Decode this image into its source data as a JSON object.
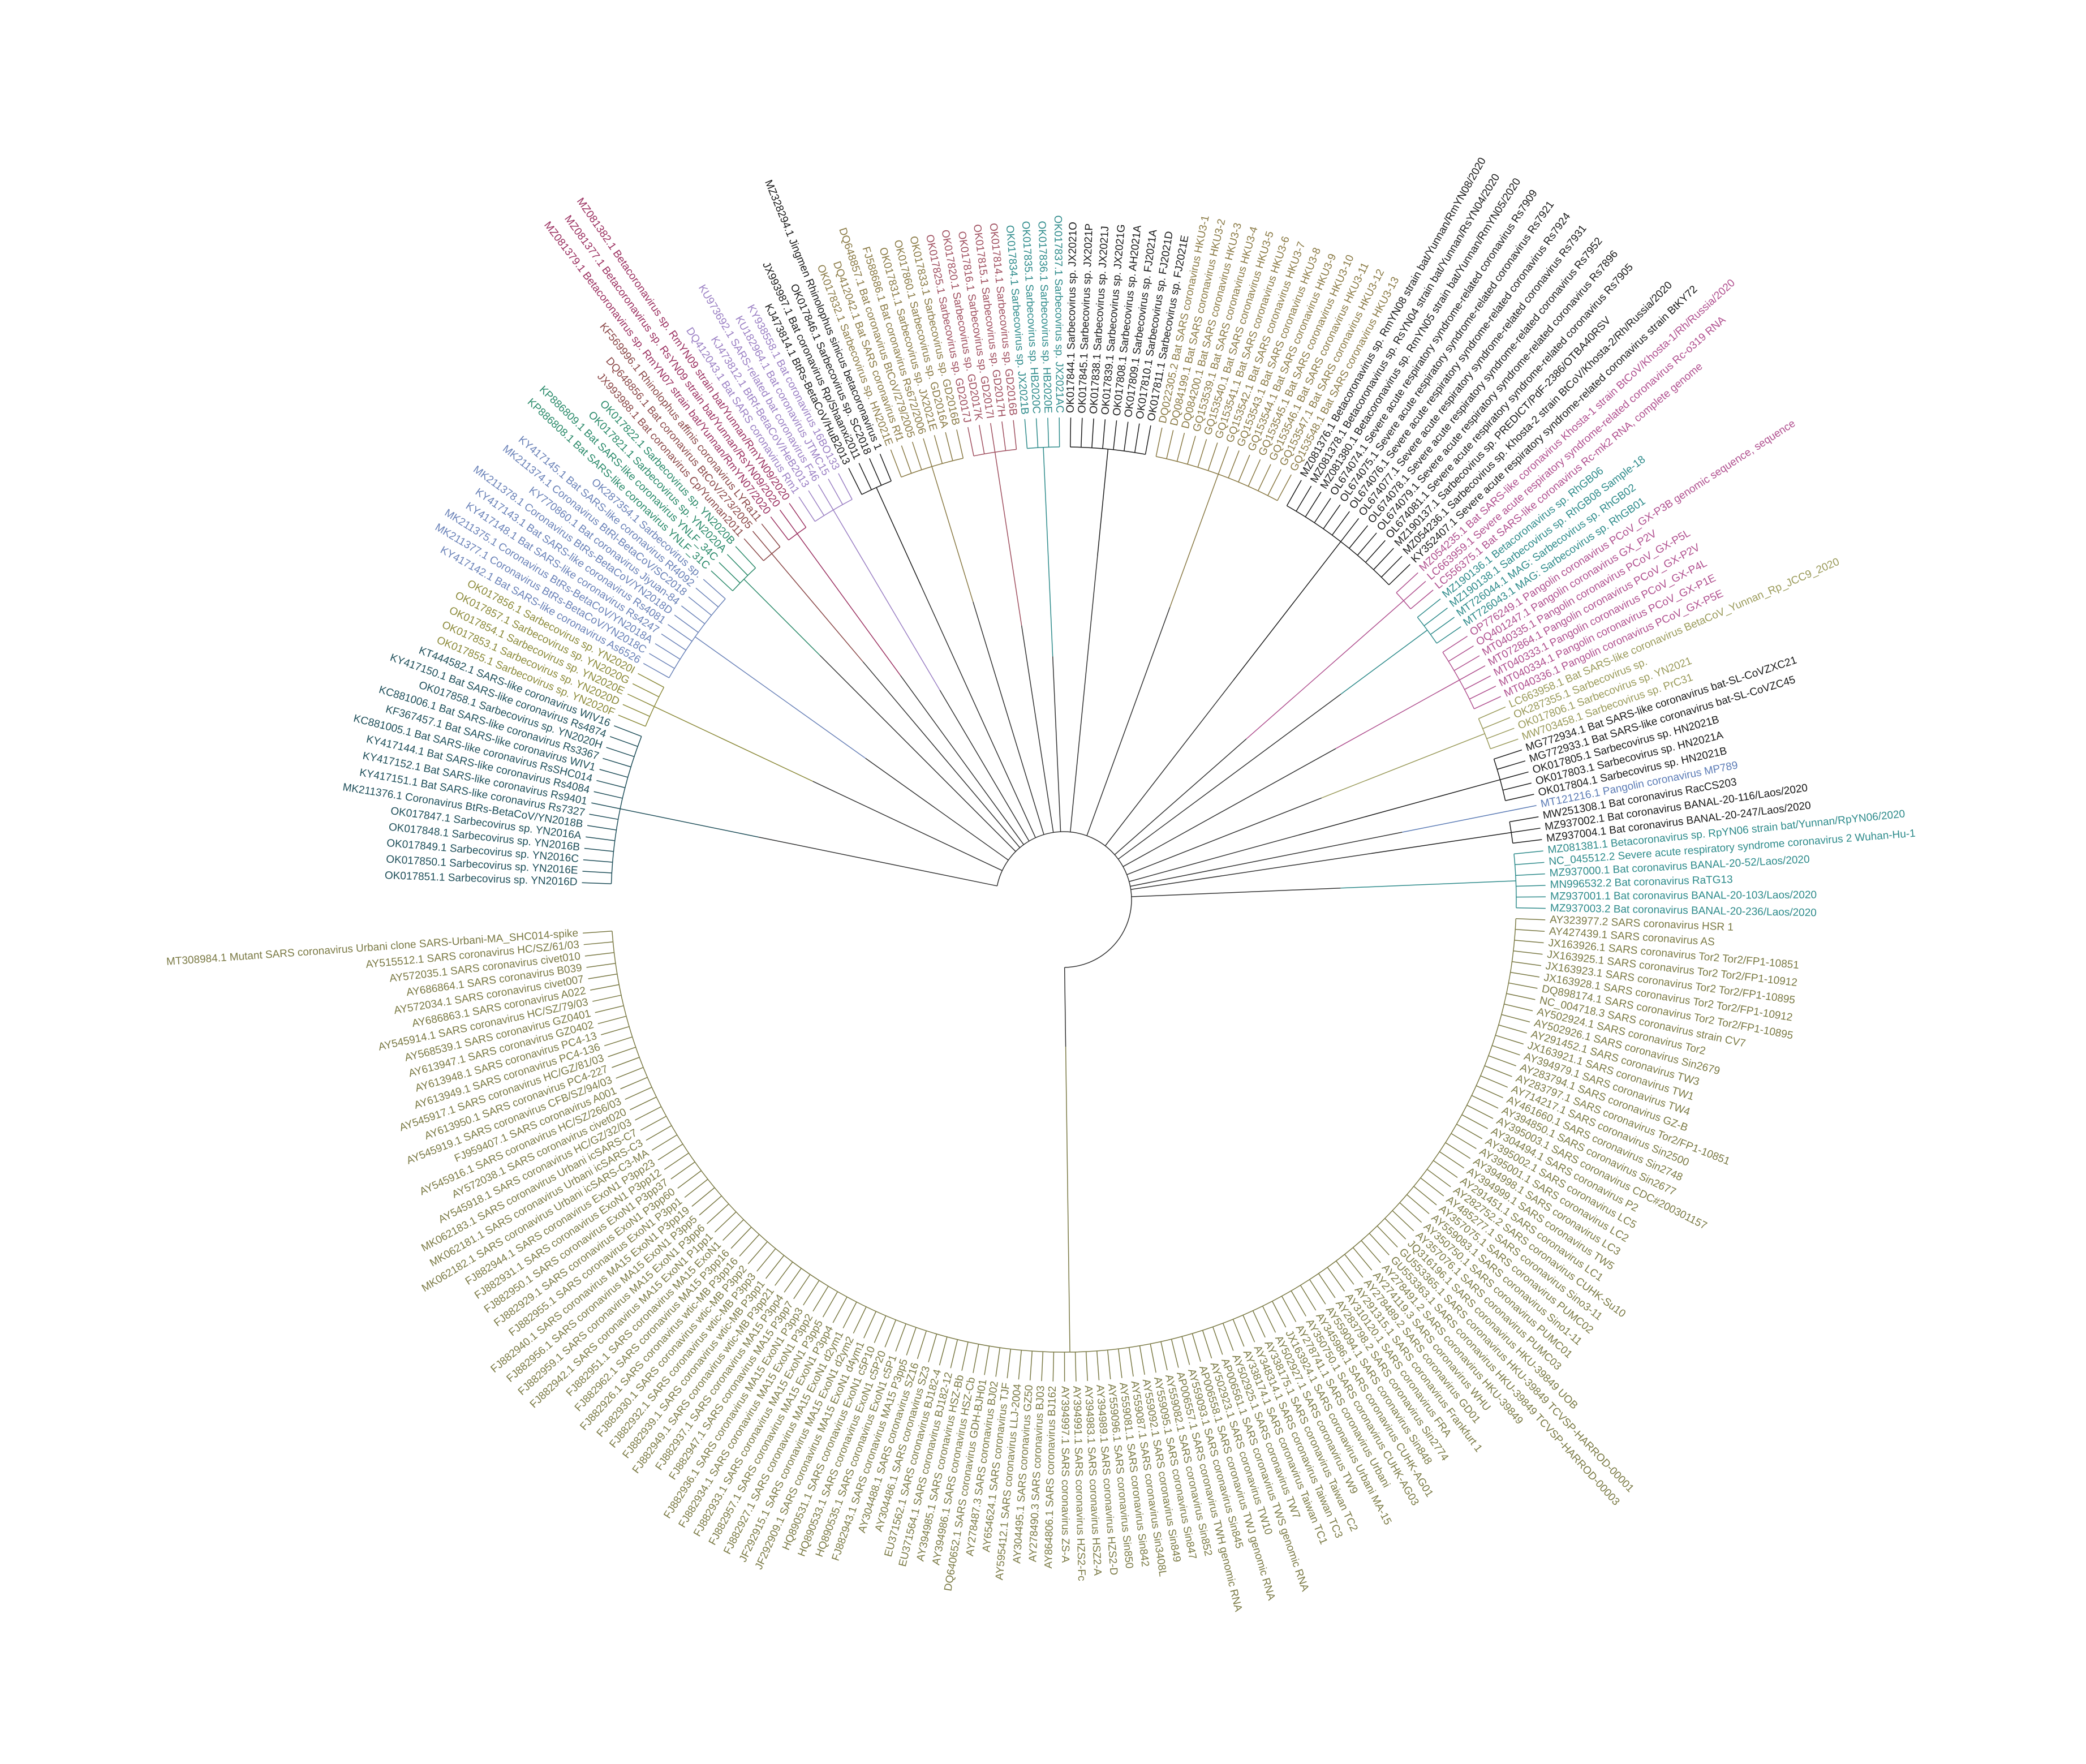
{
  "clades": [
    {
      "color": "#7b7a45",
      "leaves": [
        "MT308984.1 Mutant SARS coronavirus Urbani clone SARS-Urbani-MA_SHC014-spike",
        "AY515512.1 SARS coronavirus HC/SZ/61/03",
        "AY572035.1 SARS coronavirus civet010",
        "AY686864.1 SARS coronavirus B039",
        "AY572034.1 SARS coronavirus civet007",
        "AY686863.1 SARS coronavirus A022",
        "AY545914.1 SARS coronavirus HC/SZ/79/03",
        "AY568539.1 SARS coronavirus GZ0401",
        "AY613947.1 SARS coronavirus GZ0402",
        "AY613948.1 SARS coronavirus PC4-13",
        "AY613949.1 SARS coronavirus PC4-136",
        "AY545917.1 SARS coronavirus HC/GZ/81/03",
        "AY613950.1 SARS coronavirus PC4-227",
        "AY545919.1 SARS coronavirus CFB/SZ/94/03",
        "FJ959407.1 SARS coronavirus A001",
        "AY545916.1 SARS coronavirus HC/SZ/266/03",
        "AY572038.1 SARS coronavirus civet020",
        "AY545918.1 SARS coronavirus HC/GZ/32/03",
        "MK062183.1 SARS coronavirus Urbani icSARS-C7",
        "MK062181.1 SARS coronavirus Urbani icSARS-C3",
        "MK062182.1 SARS coronavirus Urbani icSARS-C3-MA",
        "FJ882944.1 SARS coronavirus ExoN1 P3pp23",
        "FJ882931.1 SARS coronavirus ExoN1 P3pp12",
        "FJ882950.1 SARS coronavirus ExoN1 P3pp37",
        "FJ882929.1 SARS coronavirus ExoN1 P3pp60",
        "FJ882955.1 SARS coronavirus ExoN1 P3pp1",
        "FJ882940.1 SARS coronavirus MA15 ExoN1 P3pp19",
        "FJ882956.1 SARS coronavirus MA15 ExoN1 P3pp5",
        "FJ882959.1 SARS coronavirus MA15 ExoN1 P3pp6",
        "FJ882942.1 SARS coronavirus MA15 ExoN1 P1pp1",
        "FJ882951.1 SARS coronavirus MA15 ExoN1",
        "FJ882962.1 SARS coronavirus MA15 P3pp16",
        "FJ882926.1 SARS coronavirus wtic-MB P3pp16",
        "FJ882930.1 SARS coronavirus wtic-MB P3pp2",
        "FJ882932.1 SARS coronavirus wtic-MB P3pp3",
        "FJ882939.1 SARS coronavirus wtic-MB P3pp1",
        "FJ882949.1 SARS coronavirus wtic-MB P3pp21",
        "FJ882937.1 SARS coronavirus MA15 P3pp4",
        "FJ882947.1 SARS coronavirus MA15 P3pp7",
        "FJ882936.1 SARS coronavirus MA15 ExoN1 P3pp3",
        "FJ882934.1 SARS coronavirus MA15 ExoN1 P3pp2",
        "FJ882933.1 SARS coronavirus MA15 ExoN1 P3pp5",
        "FJ882957.1 SARS coronavirus MA15 ExoN1 P3pp4",
        "FJ882927.1 SARS coronavirus MA15 ExoN1 d2ym1",
        "JF292915.1 SARS coronavirus MA15 ExoN1 d2ym2",
        "JF292909.1 SARS coronavirus MA15 ExoN1 d4ym1",
        "HQ890531.1 SARS coronavirus ExoN1 c5P10",
        "HQ890533.1 SARS coronavirus ExoN1 c5P20",
        "HQ890535.1 SARS coronavirus ExoN1 c5P1",
        "FJ882943.1 SARS coronavirus MA15 P3pp5",
        "AY304488.1 SARS coronavirus SZ16",
        "AY304486.1 SARS coronavirus SZ3",
        "EU371562.1 SARS coronavirus BJ182-4",
        "EU371564.1 SARS coronavirus BJ182-12",
        "AY394985.1 SARS coronavirus HSZ-Bb",
        "AY394986.1 SARS coronavirus HSZ-Cb",
        "DQ640652.1 SARS coronavirus GDH-BJH01",
        "AY278487.3 SARS coronavirus BJ02",
        "AY654624.1 SARS coronavirus TJF",
        "AY595412.1 SARS coronavirus LLJ-2004",
        "AY304495.1 SARS coronavirus GZ50",
        "AY278490.3 SARS coronavirus BJ03",
        "AY864806.1 SARS coronavirus BJ162",
        "AY394997.1 SARS coronavirus ZS-A",
        "AY394991.1 SARS coronavirus HZS2-Fc",
        "AY394983.1 SARS coronavirus HSZ2-A",
        "AY394989.1 SARS coronavirus HZS2-D",
        "AY559096.1 SARS coronavirus Sin850",
        "AY559081.1 SARS coronavirus Sin842",
        "AY559087.1 SARS coronavirus Sin3408L",
        "AY559092.1 SARS coronavirus Sin849",
        "AY559095.1 SARS coronavirus Sin847",
        "AY559082.1 SARS coronavirus Sin852",
        "AP006557.1 SARS coronavirus TWH genomic RNA",
        "AY559093.1 SARS coronavirus Sin845",
        "AP006558.1 SARS coronavirus TWJ genomic RNA",
        "AY502923.1 SARS coronavirus TW10",
        "AP006561.1 SARS coronavirus TWS genomic RNA",
        "AY502925.1 SARS coronavirus TW7",
        "AY338174.1 SARS coronavirus Taiwan TC1",
        "AY348314.1 SARS coronavirus Taiwan TC3",
        "AY338175.1 SARS coronavirus Taiwan TC2",
        "AY502927.1 SARS coronavirus TW9",
        "JX163924.1 SARS coronavirus Urbani MA-15",
        "AY278741.1 SARS coronavirus Urbani",
        "AY350750.1 SARS coronavirus CUHK-AG03",
        "AY345986.1 SARS coronavirus CUHK-AG01",
        "AY559094.1 SARS coronavirus Sin848",
        "AY283798.2 SARS coronavirus Sin2774",
        "AY310120.1 SARS coronavirus FRA",
        "AY291315.1 SARS coronavirus Frankfurt 1",
        "AY278489.2 SARS coronavirus GD01",
        "AY274119.3 SARS coronavirus WHU",
        "AY278491.2 SARS coronavirus HKU-39849",
        "GU553363.1 SARS coronavirus HKU-39849 TCVSP-HARROD-00003",
        "GU553365.1 SARS coronavirus HKU-39849 TCVSP-HARROD-00001",
        "JQ316196.1 SARS coronavirus HKU-39849 UOB",
        "AY357076.1 SARS coronavirus PUMC03",
        "AY350750.1 SARS coronavirus PUMC01",
        "AY559083.1 SARS coronavirus Sino1-11",
        "AY357075.1 SARS coronavirus PUMC02",
        "AY485277.1 SARS coronavirus Sino3-11",
        "AY282752.2 SARS coronavirus CUHK-Su10",
        "AY291451.1 SARS coronavirus LC1",
        "AY394999.1 SARS coronavirus TW5",
        "AY394998.1 SARS coronavirus LC3",
        "AY395001.1 SARS coronavirus LC2",
        "AY395002.1 SARS coronavirus LC5",
        "AY304494.1 SARS coronavirus P2",
        "AY395003.1 SARS coronavirus CDC#200301157",
        "AY394850.1 SARS coronavirus Sin2677",
        "AY461660.1 SARS coronavirus Sin2748",
        "AY714217.1 SARS coronavirus Sin2500",
        "AY283797.1 SARS coronavirus Tor2/FP1-10851",
        "AY283794.1 SARS coronavirus GZ-B",
        "AY394979.1 SARS coronavirus TW4",
        "JX163921.1 SARS coronavirus TW1",
        "AY291452.1 SARS coronavirus TW3",
        "AY502926.1 SARS coronavirus Sin2679",
        "AY502924.1 SARS coronavirus Tor2",
        "NC_004718.3 SARS coronavirus strain CV7",
        "DQ898174.1 SARS coronavirus Tor2 Tor2/FP1-10895",
        "JX163928.1 SARS coronavirus Tor2 Tor2/FP1-10912",
        "JX163923.1 SARS coronavirus Tor2 Tor2/FP1-10895",
        "JX163925.1 SARS coronavirus Tor2 Tor2/FP1-10912",
        "JX163926.1 SARS coronavirus Tor2 Tor2/FP1-10851",
        "AY427439.1 SARS coronavirus AS",
        "AY323977.2 SARS coronavirus HSR 1"
      ]
    },
    {
      "color": "#2e8b8b",
      "leaves": [
        "MZ937003.2 Bat coronavirus BANAL-20-236/Laos/2020",
        "MZ937001.1 Bat coronavirus BANAL-20-103/Laos/2020",
        "MN996532.2 Bat coronavirus RaTG13",
        "MZ937000.1 Bat coronavirus BANAL-20-52/Laos/2020",
        "NC_045512.2 Severe acute respiratory syndrome coronavirus 2 Wuhan-Hu-1",
        "MZ081381.1 Betacoronavirus sp. RpYN06 strain bat/Yunnan/RpYN06/2020"
      ]
    },
    {
      "color": "#1a1a1a",
      "leaves": [
        "MZ937004.1 Bat coronavirus BANAL-20-247/Laos/2020",
        "MZ937002.1 Bat coronavirus BANAL-20-116/Laos/2020",
        "MW251308.1 Bat coronavirus RacCS203"
      ]
    },
    {
      "color": "#5b7bb5",
      "leaves": [
        "MT121216.1 Pangolin coronavirus MP789"
      ]
    },
    {
      "color": "#1a1a1a",
      "leaves": [
        "OK017804.1 Sarbecovirus sp. HN2021B",
        "OK017803.1 Sarbecovirus sp. HN2021A",
        "OK017805.1 Sarbecovirus sp. HN2021B",
        "MG772933.1 Bat SARS-like coronavirus bat-SL-CoVZC45",
        "MG772934.1 Bat SARS-like coronavirus bat-SL-CoVZXC21"
      ]
    },
    {
      "color": "#9a9a5a",
      "leaves": [
        "MW703458.1 Sarbecovirus sp. PrC31",
        "OK017806.1 Sarbecovirus sp. YN2021",
        "OK287355.1 Sarbecovirus sp.",
        "LC663958.1 Bat SARS-like coronavirus BetaCoV_Yunnan_Rp_JCC9_2020"
      ]
    },
    {
      "color": "#b0508f",
      "leaves": [
        "MT040336.1 Pangolin coronavirus PCoV_GX-P5E",
        "MT040334.1 Pangolin coronavirus PCoV_GX-P1E",
        "MT040333.1 Pangolin coronavirus PCoV_GX-P4L",
        "MT072864.1 Pangolin coronavirus PCoV_GX-P2V",
        "MT040335.1 Pangolin coronavirus PCoV_GX-P5L",
        "OQ401247.1 Pangolin coronavirus GX_P2V",
        "OP776249.1 Pangolin coronavirus PCoV_GX-P3B genomic sequence, sequence"
      ]
    },
    {
      "color": "#2e8b8b",
      "leaves": [
        "MT726043.1 MAG: Sarbecovirus sp. RhGB01",
        "MT726044.1 MAG: Sarbecovirus sp. RhGB02",
        "MZ190138.1 Sarbecovirus sp. RhGB08 Sample-18",
        "MZ190136.1 Betacoronavirus sp. RhGB06"
      ]
    },
    {
      "color": "#b0508f",
      "leaves": [
        "LC556375.1 Bat SARS-like coronavirus Rc-mk2 RNA, complete genome",
        "LC663959.1 Severe acute respiratory syndrome-related coronavirus Rc-o319 RNA",
        "MZ054235.1 Bat SARS-like coronavirus Khosta-1 strain BtCoV/Khosta-1/Rh/Russia/2020"
      ]
    },
    {
      "color": "#1a1a1a",
      "leaves": [
        "KY352407.1 Severe acute respiratory syndrome-related coronavirus strain BtKY72",
        "MZ054236.1 Sarbecovirus sp. Khosta-2 strain BtCoV/Khosta-2/Rh/Russia/2020",
        "MZ190137.1 Sarbecovirus sp. PREDICT/PdF-2386/OTBA40RSV",
        "OL674081.1 Severe acute respiratory syndrome-related coronavirus Rs7905",
        "OL674079.1 Severe acute respiratory syndrome-related coronavirus Rs7896",
        "OL674078.1 Severe acute respiratory syndrome-related coronavirus Rs7952",
        "OL674077.1 Severe acute respiratory syndrome-related coronavirus Rs7931",
        "OL674076.1 Severe acute respiratory syndrome-related coronavirus Rs7924",
        "OL674075.1 Severe acute respiratory syndrome-related coronavirus Rs7921",
        "OL674074.1 Severe acute respiratory syndrome-related coronavirus Rs7909",
        "MZ081380.1 Betacoronavirus sp. RmYN05 strain bat/Yunnan/RmYN05/2020",
        "MZ081378.1 Betacoronavirus sp. RsYN04 strain bat/Yunnan/RsYN04/2020",
        "MZ081376.1 Betacoronavirus sp. RmYN08 strain bat/Yunnan/RmYN08/2020"
      ]
    },
    {
      "color": "#8a7a45",
      "leaves": [
        "GQ153548.1 Bat SARS coronavirus HKU3-13",
        "GQ153547.1 Bat SARS coronavirus HKU3-12",
        "GQ153546.1 Bat SARS coronavirus HKU3-11",
        "GQ153545.1 Bat SARS coronavirus HKU3-10",
        "GQ153544.1 Bat SARS coronavirus HKU3-9",
        "GQ153543.1 Bat SARS coronavirus HKU3-8",
        "GQ153542.1 Bat SARS coronavirus HKU3-7",
        "GQ153541.1 Bat SARS coronavirus HKU3-6",
        "GQ153540.1 Bat SARS coronavirus HKU3-5",
        "GQ153539.1 Bat SARS coronavirus HKU3-4",
        "DQ084200.1 Bat SARS coronavirus HKU3-3",
        "DQ084199.1 Bat SARS coronavirus HKU3-2",
        "DQ022305.2 Bat SARS coronavirus HKU3-1"
      ]
    },
    {
      "color": "#1a1a1a",
      "leaves": [
        "OK017811.1 Sarbecovirus sp. FJ2021E",
        "OK017810.1 Sarbecovirus sp. FJ2021D",
        "OK017809.1 Sarbecovirus sp. FJ2021A",
        "OK017808.1 Sarbecovirus sp. AH2021A",
        "OK017839.1 Sarbecovirus sp. JX2021G",
        "OK017838.1 Sarbecovirus sp. JX2021J",
        "OK017845.1 Sarbecovirus sp. JX2021P",
        "OK017844.1 Sarbecovirus sp. JX2021O"
      ]
    },
    {
      "color": "#2e8b8b",
      "leaves": [
        "OK017837.1 Sarbecovirus sp. JX2021AC",
        "OK017836.1 Sarbecovirus sp. HB2020E",
        "OK017835.1 Sarbecovirus sp. HB2020C",
        "OK017834.1 Sarbecovirus sp. JX2021B"
      ]
    },
    {
      "color": "#a05060",
      "leaves": [
        "OK017814.1 Sarbecovirus sp. GD2016B",
        "OK017815.1 Sarbecovirus sp. GD2017H",
        "OK017816.1 Sarbecovirus sp. GD2017I",
        "OK017820.1 Sarbecovirus sp. GD2017K",
        "OK017825.1 Sarbecovirus sp. GD2017J"
      ]
    },
    {
      "color": "#8a7a45",
      "leaves": [
        "OK017833.1 Sarbecovirus sp. GD2016B",
        "OK017860.1 Sarbecovirus sp. GD2016A",
        "OK017831.1 Sarbecovirus sp. JX2021E",
        "FJ588686.1 Bat coronavirus Rs672/2006",
        "DQ648857.1 Bat coronavirus BtCoV/279/2005",
        "DQ412042.1 Bat SARS coronavirus Rf1",
        "OK017832.1 Sarbecovirus sp. HN2021E"
      ]
    },
    {
      "color": "#1a1a1a",
      "leaves": [
        "MZ328294.1 Jingmen Rhinolophus sinicus betacoronavirus 1",
        "OK017846.1 Sarbecovirus sp. SC2018",
        "JX993987.1 Bat coronavirus Rp/Shaanxi2011",
        "KJ473814.1 BtRs-BetaCoV/HuB2013"
      ]
    },
    {
      "color": "#9b80c4",
      "leaves": [
        "KY938558.1 Bat coronavirus 16BO133",
        "KU182964.1 Bat coronavirus JTMC15",
        "KU973692.1 SARS-related bat coronavirus F46",
        "KJ473812.1 BtRf-BetaCoV/HeB2013",
        "DQ412043.1 Bat SARS coronavirus Rm1"
      ]
    },
    {
      "color": "#9b3060",
      "leaves": [
        "MZ081382.1 Betacoronavirus sp. RmYN09 strain bat/Yunnan/RmYN09/2020",
        "MZ081377.1 Betacoronavirus sp. RsYN09 strain bat/Yunnan/RsYN09/2020",
        "MZ081379.1 Betacoronavirus sp. RmYN07 strain bat/Yunnan/RmYN07/2020"
      ]
    },
    {
      "color": "#8b4848",
      "leaves": [
        "KF569996.1 Rhinolophus affinis coronavirus LYRa11",
        "DQ648856.1 Bat coronavirus BtCoV/273/2005",
        "JX993988.1 Bat coronavirus Cp/Yunnan2011"
      ]
    },
    {
      "color": "#2a8a6a",
      "leaves": [
        "OK017822.1 Sarbecovirus sp. YN2020B",
        "OK017821.1 Sarbecovirus sp. YN2020A",
        "KP886809.1 Bat SARS-like coronavirus YNLF_34C",
        "KP886808.1 Bat SARS-like coronavirus YNLF_31C"
      ]
    },
    {
      "color": "#6a82b8",
      "leaves": [
        "OK287354.1 Sarbecovirus sp.",
        "KY417145.1 Bat SARS-like coronavirus Rf4092",
        "MK211374.1 Coronavirus BtRl-BetaCoV/SC2018",
        "KY770860.1 Bat coronavirus Jiyuan-84",
        "MK211378.1 Coronavirus BtRs-BetaCoV/YN2018D",
        "KY417143.1 Bat SARS-like coronavirus Rs4081",
        "KY417148.1 Bat SARS-like coronavirus Rs4247",
        "MK211375.1 Coronavirus BtRs-BetaCoV/YN2018A",
        "MK211377.1 Coronavirus BtRs-BetaCoV/YN2018C",
        "KY417142.1 Bat SARS-like coronavirus As6526"
      ]
    },
    {
      "color": "#8c8a3a",
      "leaves": [
        "OK017856.1 Sarbecovirus sp. YN2020I",
        "OK017857.1 Sarbecovirus sp. YN2020G",
        "OK017854.1 Sarbecovirus sp. YN2020E",
        "OK017853.1 Sarbecovirus sp. YN2020D",
        "OK017855.1 Sarbecovirus sp. YN2020F"
      ]
    },
    {
      "color": "#1f4f5a",
      "leaves": [
        "KT444582.1 SARS-like coronavirus WIV16",
        "KY417150.1 Bat SARS-like coronavirus Rs4874",
        "OK017858.1 Sarbecovirus sp. YN2020H",
        "KC881006.1 Bat SARS-like coronavirus Rs3367",
        "KF367457.1 Bat SARS-like coronavirus WIV1",
        "KC881005.1 Bat SARS-like coronavirus RsSHC014",
        "KY417144.1 Bat SARS-like coronavirus Rs4084",
        "KY417152.1 Bat SARS-like coronavirus Rs9401",
        "KY417151.1 Bat SARS-like coronavirus Rs7327",
        "MK211376.1 Coronavirus BtRs-BetaCoV/YN2018B",
        "OK017847.1 Sarbecovirus sp. YN2016A",
        "OK017848.1 Sarbecovirus sp. YN2016B",
        "OK017849.1 Sarbecovirus sp. YN2016C",
        "OK017850.1 Sarbecovirus sp. YN2016E",
        "OK017851.1 Sarbecovirus sp. YN2016D"
      ]
    }
  ]
}
